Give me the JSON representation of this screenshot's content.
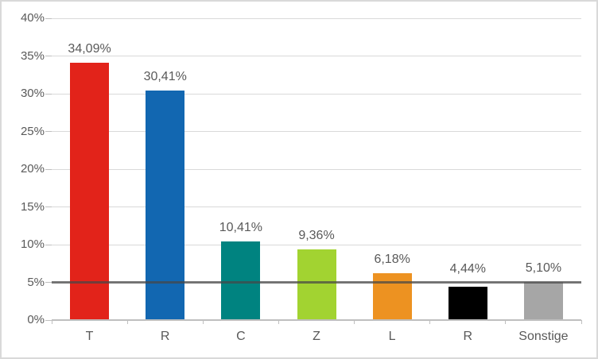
{
  "frame": {
    "background_color": "#FFFFFF",
    "border_color": "#D9D9D9",
    "text_color": "#595959",
    "grid_color": "#D9D9D9",
    "axis_color": "#BFBFBF"
  },
  "chart_data": {
    "type": "bar",
    "title": "",
    "xlabel": "",
    "ylabel": "",
    "categories": [
      "T",
      "R",
      "C",
      "Z",
      "L",
      "R",
      "Sonstige"
    ],
    "values": [
      34.09,
      30.41,
      10.41,
      9.36,
      6.18,
      4.44,
      5.1
    ],
    "data_labels": [
      "34,09%",
      "30,41%",
      "10,41%",
      "9,36%",
      "6,18%",
      "4,44%",
      "5,10%"
    ],
    "bar_colors": [
      "#E2231A",
      "#1267B1",
      "#008380",
      "#A2D331",
      "#ED9221",
      "#000000",
      "#A6A6A6"
    ],
    "ylim": [
      0,
      40
    ],
    "ytick_step": 5,
    "ytick_labels": [
      "0%",
      "5%",
      "10%",
      "15%",
      "20%",
      "25%",
      "30%",
      "35%",
      "40%"
    ],
    "grid": true,
    "legend": false,
    "threshold_line": {
      "value": 5,
      "color": "#464646",
      "opacity": 0.72
    }
  }
}
